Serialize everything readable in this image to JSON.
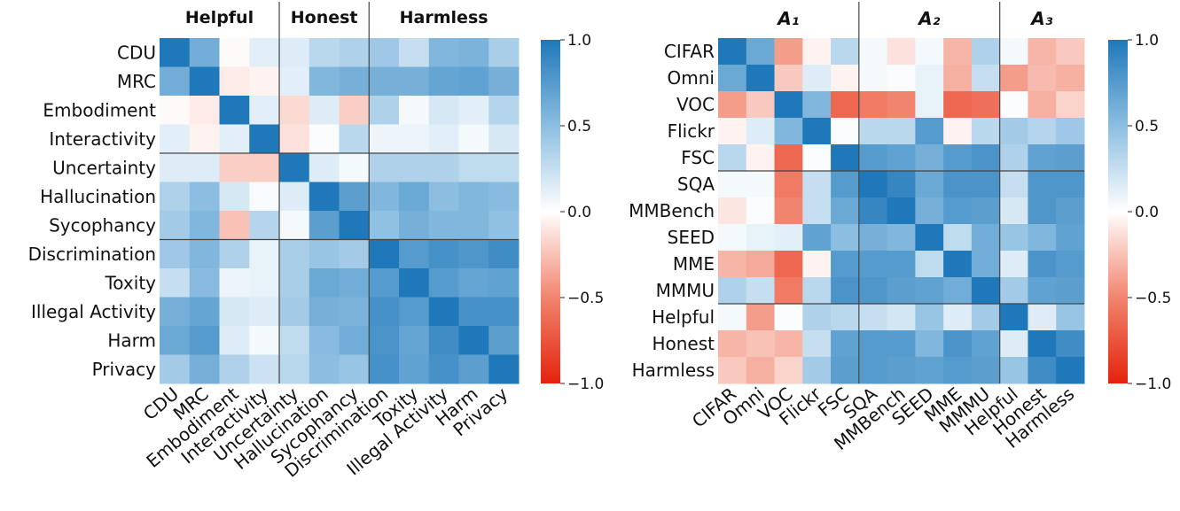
{
  "chart_data": [
    {
      "type": "heatmap",
      "rows": [
        "CDU",
        "MRC",
        "Embodiment",
        "Interactivity",
        "Uncertainty",
        "Hallucination",
        "Sycophancy",
        "Discrimination",
        "Toxity",
        "Illegal Activity",
        "Harm",
        "Privacy"
      ],
      "columns": [
        "CDU",
        "MRC",
        "Embodiment",
        "Interactivity",
        "Uncertainty",
        "Hallucination",
        "Sycophancy",
        "Discrimination",
        "Toxity",
        "Illegal Activity",
        "Harm",
        "Privacy"
      ],
      "groups": [
        {
          "label": "Helpful",
          "start": 0,
          "end": 4
        },
        {
          "label": "Honest",
          "start": 4,
          "end": 7
        },
        {
          "label": "Harmless",
          "start": 7,
          "end": 12
        }
      ],
      "colorbar": {
        "min": -1.0,
        "max": 1.0,
        "ticks": [
          "1.0",
          "0.5",
          "0.0",
          "−0.5",
          "−1.0"
        ]
      },
      "values": [
        [
          1.0,
          0.62,
          -0.02,
          0.12,
          0.15,
          0.3,
          0.35,
          0.42,
          0.25,
          0.55,
          0.58,
          0.38
        ],
        [
          0.62,
          1.0,
          -0.08,
          -0.05,
          0.12,
          0.55,
          0.6,
          0.6,
          0.6,
          0.68,
          0.7,
          0.6
        ],
        [
          -0.02,
          -0.08,
          1.0,
          0.12,
          -0.15,
          0.15,
          -0.2,
          0.35,
          0.05,
          0.18,
          0.12,
          0.32
        ],
        [
          0.12,
          -0.05,
          0.12,
          1.0,
          -0.12,
          0.02,
          0.3,
          0.08,
          0.08,
          0.12,
          0.05,
          0.18
        ],
        [
          0.15,
          0.15,
          -0.2,
          -0.2,
          1.0,
          0.15,
          0.05,
          0.35,
          0.35,
          0.35,
          0.28,
          0.28
        ],
        [
          0.35,
          0.5,
          0.18,
          0.03,
          0.15,
          1.0,
          0.72,
          0.55,
          0.65,
          0.5,
          0.55,
          0.52
        ],
        [
          0.4,
          0.55,
          -0.25,
          0.32,
          0.05,
          0.72,
          1.0,
          0.48,
          0.6,
          0.55,
          0.55,
          0.48
        ],
        [
          0.42,
          0.55,
          0.35,
          0.1,
          0.38,
          0.45,
          0.4,
          1.0,
          0.75,
          0.82,
          0.78,
          0.85
        ],
        [
          0.25,
          0.52,
          0.08,
          0.1,
          0.38,
          0.65,
          0.62,
          0.75,
          1.0,
          0.75,
          0.68,
          0.7
        ],
        [
          0.6,
          0.68,
          0.18,
          0.15,
          0.4,
          0.6,
          0.58,
          0.82,
          0.75,
          1.0,
          0.82,
          0.82
        ],
        [
          0.65,
          0.75,
          0.15,
          0.05,
          0.28,
          0.52,
          0.62,
          0.8,
          0.68,
          0.85,
          1.0,
          0.72
        ],
        [
          0.4,
          0.6,
          0.35,
          0.22,
          0.3,
          0.5,
          0.45,
          0.82,
          0.7,
          0.82,
          0.72,
          1.0
        ]
      ]
    },
    {
      "type": "heatmap",
      "rows": [
        "CIFAR",
        "Omni",
        "VOC",
        "Flickr",
        "FSC",
        "SQA",
        "MMBench",
        "SEED",
        "MME",
        "MMMU",
        "Helpful",
        "Honest",
        "Harmless"
      ],
      "columns": [
        "CIFAR",
        "Omni",
        "VOC",
        "Flickr",
        "FSC",
        "SQA",
        "MMBench",
        "SEED",
        "MME",
        "MMMU",
        "Helpful",
        "Honest",
        "Harmless"
      ],
      "groups": [
        {
          "label": "A₁",
          "start": 0,
          "end": 5
        },
        {
          "label": "A₂",
          "start": 5,
          "end": 10
        },
        {
          "label": "A₃",
          "start": 10,
          "end": 13
        }
      ],
      "colorbar": {
        "min": -1.0,
        "max": 1.0,
        "ticks": [
          "1.0",
          "0.5",
          "0.0",
          "−0.5",
          "−1.0"
        ]
      },
      "values": [
        [
          1.0,
          0.65,
          -0.4,
          -0.05,
          0.3,
          0.05,
          -0.12,
          0.05,
          -0.3,
          0.35,
          0.05,
          -0.3,
          -0.22
        ],
        [
          0.65,
          1.0,
          -0.22,
          0.15,
          -0.05,
          0.05,
          0.02,
          0.1,
          -0.32,
          0.25,
          -0.4,
          -0.28,
          -0.32
        ],
        [
          -0.4,
          -0.22,
          1.0,
          0.55,
          -0.65,
          -0.55,
          -0.5,
          0.1,
          -0.65,
          -0.6,
          0.02,
          -0.32,
          -0.18
        ],
        [
          -0.05,
          0.15,
          0.55,
          1.0,
          0.02,
          0.3,
          0.3,
          0.75,
          -0.05,
          0.3,
          0.4,
          0.32,
          0.42
        ],
        [
          0.3,
          -0.05,
          -0.65,
          0.02,
          1.0,
          0.75,
          0.7,
          0.6,
          0.75,
          0.8,
          0.35,
          0.7,
          0.72
        ],
        [
          0.05,
          0.05,
          -0.55,
          0.25,
          0.75,
          1.0,
          0.9,
          0.65,
          0.8,
          0.8,
          0.25,
          0.78,
          0.78
        ],
        [
          -0.1,
          0.02,
          -0.5,
          0.25,
          0.65,
          0.9,
          1.0,
          0.6,
          0.75,
          0.72,
          0.18,
          0.78,
          0.72
        ],
        [
          0.05,
          0.1,
          0.12,
          0.7,
          0.5,
          0.6,
          0.55,
          1.0,
          0.28,
          0.62,
          0.45,
          0.55,
          0.7
        ],
        [
          -0.3,
          -0.35,
          -0.65,
          -0.05,
          0.75,
          0.75,
          0.75,
          0.28,
          1.0,
          0.62,
          0.15,
          0.8,
          0.75
        ],
        [
          0.35,
          0.25,
          -0.55,
          0.3,
          0.8,
          0.78,
          0.72,
          0.7,
          0.62,
          1.0,
          0.4,
          0.7,
          0.72
        ],
        [
          0.05,
          -0.4,
          0.02,
          0.35,
          0.3,
          0.25,
          0.2,
          0.45,
          0.15,
          0.4,
          1.0,
          0.15,
          0.45
        ],
        [
          -0.3,
          -0.25,
          -0.3,
          0.25,
          0.7,
          0.75,
          0.75,
          0.55,
          0.8,
          0.7,
          0.15,
          1.0,
          0.85
        ],
        [
          -0.22,
          -0.32,
          -0.18,
          0.4,
          0.72,
          0.75,
          0.72,
          0.7,
          0.75,
          0.72,
          0.45,
          0.85,
          1.0
        ]
      ]
    }
  ]
}
